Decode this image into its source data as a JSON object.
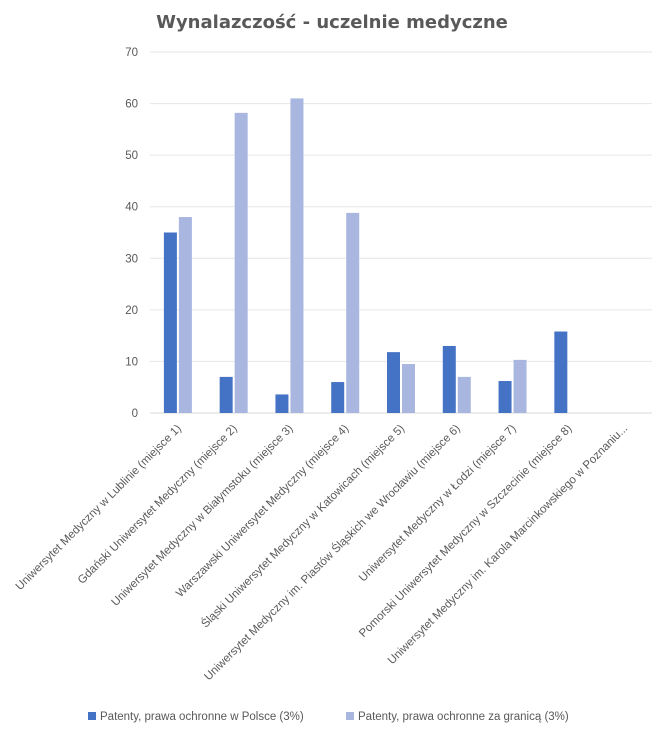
{
  "chart_data": {
    "type": "bar",
    "title": "Wynalazczość - uczelnie medyczne",
    "xlabel": "",
    "ylabel": "",
    "ylim": [
      0,
      70
    ],
    "yticks": [
      0,
      10,
      20,
      30,
      40,
      50,
      60,
      70
    ],
    "grid": true,
    "legend_position": "bottom",
    "categories": [
      "Uniwersytet Medyczny w Lublinie (miejsce 1)",
      "Gdański Uniwersytet Medyczny (miejsce 2)",
      "Uniwersytet Medyczny w Białymstoku (miejsce 3)",
      "Warszawski Uniwersytet Medyczny (miejsce 4)",
      "Śląski Uniwersytet Medyczny w Katowicach (miejsce 5)",
      "Uniwersytet Medyczny im. Piastów Śląskich we Wrocławiu (miejsce 6)",
      "Uniwersytet Medyczny w Łodzi (miejsce 7)",
      "Pomorski Uniwersytet Medyczny w Szczecinie (miejsce 8)",
      "Uniwersytet Medyczny im. Karola Marcinkowskiego w Poznaniu..."
    ],
    "series": [
      {
        "name": "Patenty, prawa ochronne w Polsce (3%)",
        "color": "#4472C4",
        "values": [
          35,
          7,
          3.6,
          6,
          11.8,
          13,
          6.2,
          15.8,
          0
        ]
      },
      {
        "name": "Patenty, prawa ochronne za granicą (3%)",
        "color": "#A9B7E0",
        "values": [
          38,
          58.2,
          61,
          38.8,
          9.5,
          7,
          10.3,
          0,
          0
        ]
      }
    ]
  }
}
